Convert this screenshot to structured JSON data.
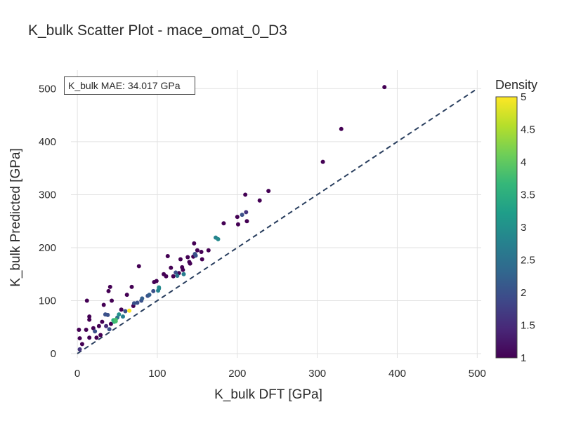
{
  "chart_data": {
    "type": "scatter",
    "title": "K_bulk Scatter Plot - mace_omat_0_D3",
    "xlabel": "K_bulk DFT [GPa]",
    "ylabel": "K_bulk Predicted [GPa]",
    "xlim": [
      -8,
      505
    ],
    "ylim": [
      -8,
      535
    ],
    "xticks": [
      0,
      100,
      200,
      300,
      400,
      500
    ],
    "yticks": [
      0,
      100,
      200,
      300,
      400,
      500
    ],
    "grid": true,
    "reference_line": {
      "x": [
        0,
        500
      ],
      "y": [
        0,
        500
      ],
      "style": "dashed",
      "color": "#2a3f5f"
    },
    "annotation": "K_bulk MAE: 34.017 GPa",
    "colorbar": {
      "title": "Density",
      "range": [
        1,
        5
      ],
      "ticks": [
        "1",
        "1.5",
        "2",
        "2.5",
        "3",
        "3.5",
        "4",
        "4.5",
        "5"
      ],
      "colorscale": "viridis"
    },
    "points": [
      {
        "x": 2,
        "y": 45,
        "d": 1
      },
      {
        "x": 3,
        "y": 29,
        "d": 1
      },
      {
        "x": 3,
        "y": 8,
        "d": 1.6
      },
      {
        "x": 6,
        "y": 18,
        "d": 1
      },
      {
        "x": 11,
        "y": 45,
        "d": 1
      },
      {
        "x": 12,
        "y": 100,
        "d": 1
      },
      {
        "x": 15,
        "y": 70,
        "d": 1
      },
      {
        "x": 15,
        "y": 64,
        "d": 1
      },
      {
        "x": 15,
        "y": 30,
        "d": 1
      },
      {
        "x": 20,
        "y": 48,
        "d": 1
      },
      {
        "x": 22,
        "y": 42,
        "d": 2
      },
      {
        "x": 24,
        "y": 30,
        "d": 1
      },
      {
        "x": 27,
        "y": 52,
        "d": 1
      },
      {
        "x": 29,
        "y": 35,
        "d": 1
      },
      {
        "x": 31,
        "y": 60,
        "d": 1
      },
      {
        "x": 33,
        "y": 92,
        "d": 1
      },
      {
        "x": 35,
        "y": 74,
        "d": 2
      },
      {
        "x": 36,
        "y": 52,
        "d": 1.5
      },
      {
        "x": 38,
        "y": 73,
        "d": 2
      },
      {
        "x": 39,
        "y": 118,
        "d": 1
      },
      {
        "x": 40,
        "y": 46,
        "d": 2
      },
      {
        "x": 41,
        "y": 126,
        "d": 1
      },
      {
        "x": 42,
        "y": 56,
        "d": 1
      },
      {
        "x": 43,
        "y": 100,
        "d": 1
      },
      {
        "x": 45,
        "y": 63,
        "d": 3.5
      },
      {
        "x": 46,
        "y": 60,
        "d": 3.6
      },
      {
        "x": 48,
        "y": 61,
        "d": 3.8
      },
      {
        "x": 48,
        "y": 64,
        "d": 3.8
      },
      {
        "x": 50,
        "y": 68,
        "d": 2.5
      },
      {
        "x": 52,
        "y": 74,
        "d": 3
      },
      {
        "x": 55,
        "y": 83,
        "d": 1
      },
      {
        "x": 57,
        "y": 70,
        "d": 2.7
      },
      {
        "x": 60,
        "y": 80,
        "d": 2
      },
      {
        "x": 62,
        "y": 111,
        "d": 1
      },
      {
        "x": 65,
        "y": 81,
        "d": 5
      },
      {
        "x": 68,
        "y": 126,
        "d": 1
      },
      {
        "x": 70,
        "y": 90,
        "d": 1
      },
      {
        "x": 71,
        "y": 95,
        "d": 2
      },
      {
        "x": 75,
        "y": 96,
        "d": 2
      },
      {
        "x": 77,
        "y": 165,
        "d": 1
      },
      {
        "x": 80,
        "y": 100,
        "d": 2
      },
      {
        "x": 81,
        "y": 104,
        "d": 2.2
      },
      {
        "x": 88,
        "y": 109,
        "d": 2
      },
      {
        "x": 90,
        "y": 111,
        "d": 2.2
      },
      {
        "x": 95,
        "y": 118,
        "d": 2
      },
      {
        "x": 96,
        "y": 135,
        "d": 1
      },
      {
        "x": 99,
        "y": 137,
        "d": 1
      },
      {
        "x": 101,
        "y": 119,
        "d": 2.8
      },
      {
        "x": 102,
        "y": 125,
        "d": 2.9
      },
      {
        "x": 102,
        "y": 123,
        "d": 2.8
      },
      {
        "x": 108,
        "y": 150,
        "d": 1
      },
      {
        "x": 111,
        "y": 146,
        "d": 1
      },
      {
        "x": 113,
        "y": 184,
        "d": 1
      },
      {
        "x": 117,
        "y": 162,
        "d": 1
      },
      {
        "x": 120,
        "y": 146,
        "d": 1
      },
      {
        "x": 123,
        "y": 153,
        "d": 2
      },
      {
        "x": 125,
        "y": 147,
        "d": 2.6
      },
      {
        "x": 127,
        "y": 152,
        "d": 1
      },
      {
        "x": 129,
        "y": 178,
        "d": 1
      },
      {
        "x": 131,
        "y": 163,
        "d": 1
      },
      {
        "x": 132,
        "y": 158,
        "d": 1
      },
      {
        "x": 133,
        "y": 150,
        "d": 2.7
      },
      {
        "x": 138,
        "y": 182,
        "d": 1
      },
      {
        "x": 140,
        "y": 173,
        "d": 1
      },
      {
        "x": 141,
        "y": 170,
        "d": 1
      },
      {
        "x": 145,
        "y": 183,
        "d": 1
      },
      {
        "x": 146,
        "y": 208,
        "d": 1
      },
      {
        "x": 147,
        "y": 188,
        "d": 2
      },
      {
        "x": 148,
        "y": 185,
        "d": 2
      },
      {
        "x": 150,
        "y": 195,
        "d": 1
      },
      {
        "x": 155,
        "y": 192,
        "d": 1
      },
      {
        "x": 156,
        "y": 178,
        "d": 1
      },
      {
        "x": 164,
        "y": 195,
        "d": 1
      },
      {
        "x": 173,
        "y": 219,
        "d": 2.8
      },
      {
        "x": 176,
        "y": 216,
        "d": 2.9
      },
      {
        "x": 183,
        "y": 246,
        "d": 1
      },
      {
        "x": 200,
        "y": 258,
        "d": 1
      },
      {
        "x": 201,
        "y": 244,
        "d": 1
      },
      {
        "x": 206,
        "y": 262,
        "d": 2
      },
      {
        "x": 210,
        "y": 300,
        "d": 1
      },
      {
        "x": 211,
        "y": 267,
        "d": 1.6
      },
      {
        "x": 212,
        "y": 250,
        "d": 1
      },
      {
        "x": 228,
        "y": 289,
        "d": 1
      },
      {
        "x": 239,
        "y": 307,
        "d": 1
      },
      {
        "x": 307,
        "y": 362,
        "d": 1
      },
      {
        "x": 330,
        "y": 424,
        "d": 1
      },
      {
        "x": 384,
        "y": 503,
        "d": 1
      }
    ]
  }
}
